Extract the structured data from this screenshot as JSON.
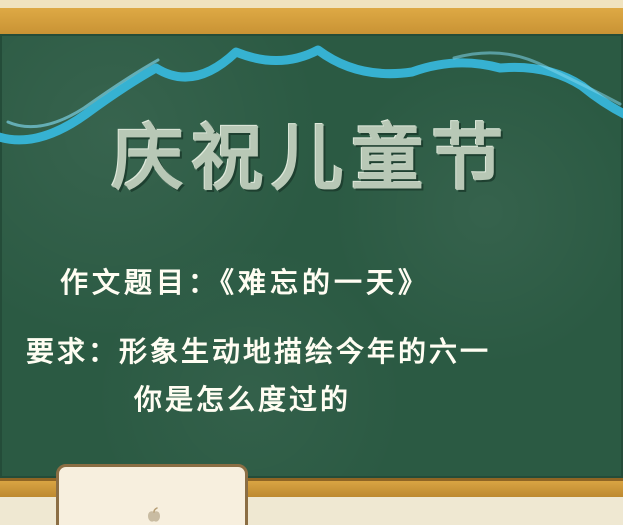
{
  "board": {
    "title": "庆祝儿童节",
    "subject": "作文题目：《难忘的一天》",
    "requirement_line1": "要求：形象生动地描绘今年的六一",
    "requirement_line2": "你是怎么度过的"
  },
  "colors": {
    "board": "#2b5a43",
    "frame": "#d9a443",
    "scallop": "#37b6d9",
    "title": "#b8c8b6",
    "text": "#fffdf2"
  },
  "icons": {
    "paper_mark": "apple-icon"
  }
}
